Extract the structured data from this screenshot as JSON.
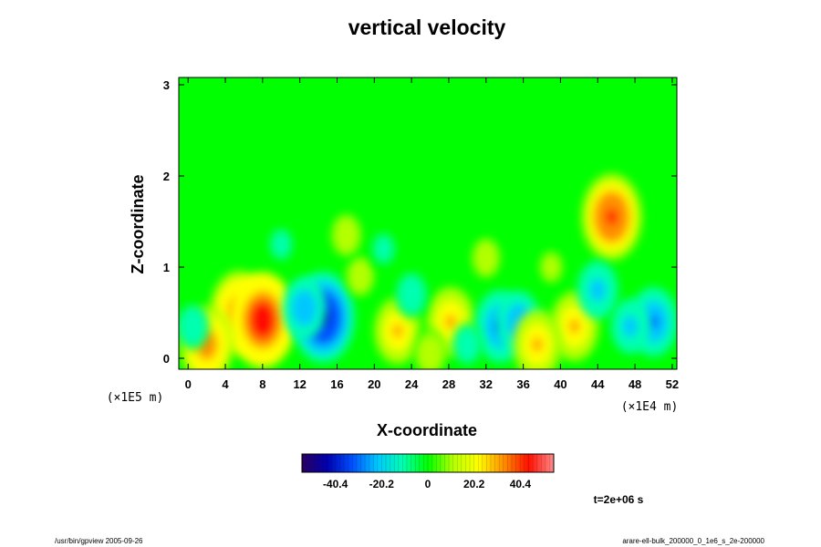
{
  "chart_data": {
    "type": "heatmap",
    "title": "vertical velocity",
    "xlabel": "X-coordinate",
    "ylabel": "Z-coordinate",
    "x_unit": "(×1E4 m)",
    "y_unit": "(×1E5 m)",
    "xlim": [
      -1,
      52.5
    ],
    "ylim": [
      -0.12,
      3.08
    ],
    "x_ticks": [
      "0",
      "4",
      "8",
      "12",
      "16",
      "20",
      "24",
      "28",
      "32",
      "36",
      "40",
      "44",
      "48",
      "52"
    ],
    "y_ticks": [
      "0",
      "1",
      "2",
      "3"
    ],
    "colorbar": {
      "min": -55,
      "max": 55,
      "ticks": [
        "-40.4",
        "-20.2",
        "0",
        "20.2",
        "40.4"
      ],
      "colors": [
        "#2a0060",
        "#0000b0",
        "#0050ff",
        "#00c8ff",
        "#00ffb0",
        "#00ff00",
        "#b4ff00",
        "#ffff00",
        "#ff9000",
        "#ff1000",
        "#ff8a8a"
      ]
    },
    "background_value": 0,
    "features": [
      {
        "x": 5.5,
        "z": 0.5,
        "value": 40
      },
      {
        "x": 8,
        "z": 0.42,
        "value": 48
      },
      {
        "x": 2,
        "z": 0.15,
        "value": 35
      },
      {
        "x": 14.5,
        "z": 0.45,
        "value": -45
      },
      {
        "x": 12.5,
        "z": 0.55,
        "value": -25
      },
      {
        "x": 22.5,
        "z": 0.3,
        "value": 28
      },
      {
        "x": 28.2,
        "z": 0.4,
        "value": 30
      },
      {
        "x": 33.5,
        "z": 0.35,
        "value": -32
      },
      {
        "x": 35.5,
        "z": 0.4,
        "value": -25
      },
      {
        "x": 41.5,
        "z": 0.35,
        "value": 30
      },
      {
        "x": 45.5,
        "z": 1.55,
        "value": 42
      },
      {
        "x": 50,
        "z": 0.4,
        "value": -30
      },
      {
        "x": 47.5,
        "z": 0.35,
        "value": -20
      },
      {
        "x": 37.5,
        "z": 0.15,
        "value": 30
      },
      {
        "x": 26,
        "z": 0.05,
        "value": 15
      },
      {
        "x": 30,
        "z": 0.15,
        "value": -12
      },
      {
        "x": 18.5,
        "z": 0.9,
        "value": 12
      },
      {
        "x": 24,
        "z": 0.7,
        "value": -15
      },
      {
        "x": 10,
        "z": 1.25,
        "value": -10
      },
      {
        "x": 17,
        "z": 1.35,
        "value": 14
      },
      {
        "x": 44,
        "z": 0.75,
        "value": -22
      },
      {
        "x": 39,
        "z": 1.0,
        "value": 10
      },
      {
        "x": 0.5,
        "z": 0.35,
        "value": -15
      },
      {
        "x": 21,
        "z": 1.2,
        "value": -10
      },
      {
        "x": 32,
        "z": 1.1,
        "value": 12
      }
    ],
    "time_label": "t=2e+06 s"
  },
  "footer": {
    "left": "/usr/bin/gpview 2005-09-26",
    "right": "arare-ell-bulk_200000_0_1e6_s_2e-200000"
  }
}
